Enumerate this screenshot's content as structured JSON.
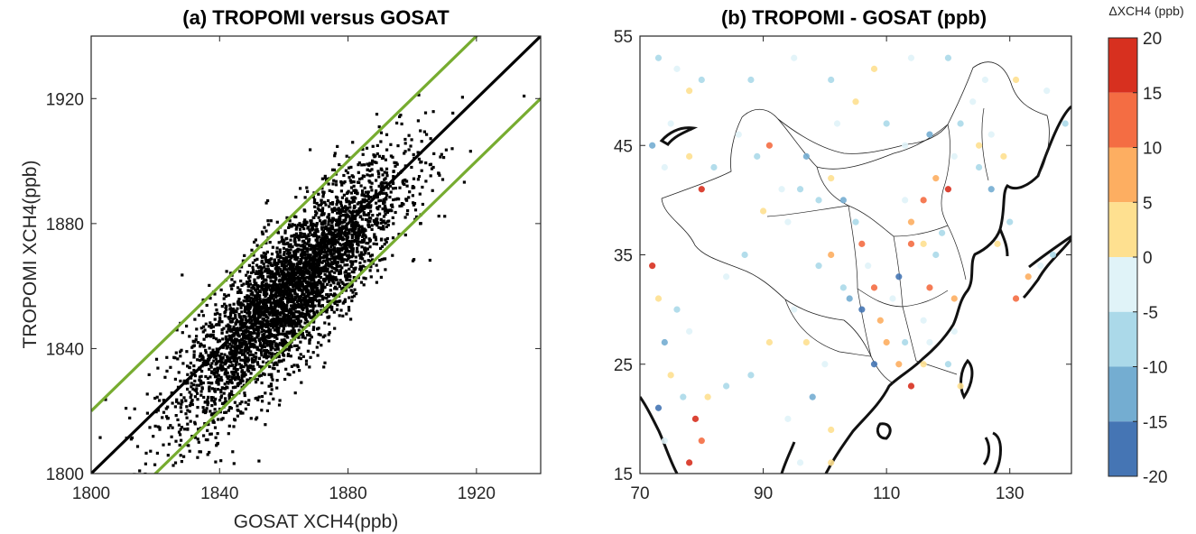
{
  "chart_data": [
    {
      "type": "scatter",
      "title": "(a) TROPOMI versus GOSAT",
      "xlabel": "GOSAT XCH4(ppb)",
      "ylabel": "TROPOMI XCH4(ppb)",
      "xlim": [
        1800,
        1940
      ],
      "ylim": [
        1800,
        1940
      ],
      "xticks": [
        "1800",
        "1840",
        "1880",
        "1920"
      ],
      "yticks": [
        "1800",
        "1840",
        "1880",
        "1920"
      ],
      "grid": false,
      "point_color": "#000000",
      "distribution": {
        "approx_point_count": 4000,
        "center_x": 1862,
        "center_y": 1858,
        "x_range": [
          1806,
          1940
        ],
        "y_range": [
          1800,
          1940
        ]
      },
      "reference_lines": [
        {
          "kind": "1:1",
          "slope": 1,
          "intercept": 0,
          "color": "#000000"
        },
        {
          "kind": "upper",
          "slope": 1,
          "intercept": 20,
          "color": "#77ac30"
        },
        {
          "kind": "lower",
          "slope": 1,
          "intercept": -20,
          "color": "#77ac30"
        }
      ]
    },
    {
      "type": "scatter",
      "title": "(b) TROPOMI - GOSAT (ppb)",
      "xlabel": "",
      "ylabel": "",
      "xlim": [
        70,
        140
      ],
      "ylim": [
        15,
        55
      ],
      "xticks": [
        "70",
        "90",
        "110",
        "130"
      ],
      "yticks": [
        "15",
        "25",
        "35",
        "45",
        "55"
      ],
      "grid": false,
      "colorbar": {
        "title": "ΔXCH4 (ppb)",
        "ticks": [
          "20",
          "15",
          "10",
          "5",
          "0",
          "-5",
          "-10",
          "-15",
          "-20"
        ],
        "bins": [
          {
            "range": [
              15,
              20
            ],
            "color": "#d7301f"
          },
          {
            "range": [
              10,
              15
            ],
            "color": "#f46d43"
          },
          {
            "range": [
              5,
              10
            ],
            "color": "#fdae61"
          },
          {
            "range": [
              0,
              5
            ],
            "color": "#fee090"
          },
          {
            "range": [
              -5,
              0
            ],
            "color": "#e0f3f8"
          },
          {
            "range": [
              -10,
              -5
            ],
            "color": "#abd9e9"
          },
          {
            "range": [
              -15,
              -10
            ],
            "color": "#74add1"
          },
          {
            "range": [
              -20,
              -15
            ],
            "color": "#4575b4"
          }
        ]
      },
      "sample_points": [
        [
          73,
          53,
          -6
        ],
        [
          76,
          52,
          -3
        ],
        [
          78,
          50,
          2
        ],
        [
          80,
          51,
          -8
        ],
        [
          75,
          47,
          -4
        ],
        [
          72,
          45,
          -12
        ],
        [
          74,
          43,
          -3
        ],
        [
          78,
          44,
          1
        ],
        [
          80,
          41,
          18
        ],
        [
          82,
          43,
          -6
        ],
        [
          86,
          46,
          -3
        ],
        [
          89,
          44,
          -7
        ],
        [
          91,
          45,
          12
        ],
        [
          93,
          41,
          -4
        ],
        [
          96,
          41,
          -9
        ],
        [
          99,
          40,
          -6
        ],
        [
          101,
          42,
          3
        ],
        [
          103,
          40,
          -14
        ],
        [
          105,
          38,
          -8
        ],
        [
          106,
          36,
          10
        ],
        [
          107,
          34,
          -5
        ],
        [
          108,
          32,
          14
        ],
        [
          106,
          30,
          -18
        ],
        [
          104,
          31,
          -12
        ],
        [
          109,
          29,
          6
        ],
        [
          111,
          31,
          -4
        ],
        [
          113,
          27,
          -7
        ],
        [
          114,
          23,
          19
        ],
        [
          112,
          25,
          8
        ],
        [
          116,
          25,
          3
        ],
        [
          116,
          29,
          -3
        ],
        [
          117,
          32,
          11
        ],
        [
          118,
          35,
          -6
        ],
        [
          119,
          37,
          -9
        ],
        [
          116,
          36,
          4
        ],
        [
          114,
          38,
          7
        ],
        [
          113,
          40,
          -3
        ],
        [
          116,
          40,
          10
        ],
        [
          118,
          42,
          9
        ],
        [
          120,
          41,
          15
        ],
        [
          121,
          44,
          -5
        ],
        [
          122,
          47,
          -9
        ],
        [
          124,
          49,
          -4
        ],
        [
          125,
          45,
          2
        ],
        [
          127,
          46,
          -3
        ],
        [
          125,
          43,
          -8
        ],
        [
          127,
          41,
          -14
        ],
        [
          129,
          44,
          2
        ],
        [
          130,
          38,
          -7
        ],
        [
          128,
          36,
          3
        ],
        [
          133,
          33,
          9
        ],
        [
          135,
          34,
          -5
        ],
        [
          137,
          35,
          -6
        ],
        [
          131,
          31,
          12
        ],
        [
          121,
          31,
          5
        ],
        [
          121,
          28,
          -3
        ],
        [
          120,
          25,
          -7
        ],
        [
          122,
          23,
          2
        ],
        [
          100,
          25,
          -3
        ],
        [
          98,
          22,
          -12
        ],
        [
          101,
          19,
          3
        ],
        [
          101,
          16,
          4
        ],
        [
          96,
          16,
          -3
        ],
        [
          94,
          20,
          -5
        ],
        [
          78,
          28,
          -4
        ],
        [
          76,
          30,
          -6
        ],
        [
          73,
          31,
          1
        ],
        [
          74,
          27,
          -13
        ],
        [
          75,
          24,
          3
        ],
        [
          77,
          22,
          -8
        ],
        [
          79,
          20,
          17
        ],
        [
          80,
          18,
          14
        ],
        [
          78,
          16,
          19
        ],
        [
          72,
          34,
          18
        ],
        [
          73,
          21,
          -16
        ],
        [
          74,
          18,
          -3
        ],
        [
          81,
          22,
          3
        ],
        [
          84,
          23,
          -6
        ],
        [
          88,
          24,
          -10
        ],
        [
          91,
          27,
          2
        ],
        [
          95,
          30,
          -4
        ],
        [
          97,
          27,
          4
        ],
        [
          99,
          34,
          -7
        ],
        [
          101,
          35,
          8
        ],
        [
          103,
          32,
          -8
        ],
        [
          108,
          25,
          -16
        ],
        [
          110,
          27,
          5
        ],
        [
          112,
          33,
          -17
        ],
        [
          114,
          36,
          12
        ],
        [
          117,
          27,
          -4
        ],
        [
          84,
          33,
          -3
        ],
        [
          87,
          35,
          -8
        ],
        [
          90,
          39,
          4
        ],
        [
          94,
          38,
          -5
        ],
        [
          97,
          44,
          -11
        ],
        [
          102,
          47,
          -4
        ],
        [
          105,
          49,
          3
        ],
        [
          110,
          47,
          -9
        ],
        [
          113,
          45,
          -3
        ],
        [
          117,
          46,
          -12
        ],
        [
          88,
          51,
          -7
        ],
        [
          95,
          53,
          -4
        ],
        [
          101,
          51,
          -8
        ],
        [
          108,
          52,
          4
        ],
        [
          114,
          53,
          -5
        ],
        [
          120,
          53,
          -9
        ],
        [
          126,
          51,
          -4
        ],
        [
          131,
          51,
          3
        ],
        [
          136,
          50,
          -3
        ],
        [
          139,
          47,
          -6
        ]
      ]
    }
  ]
}
